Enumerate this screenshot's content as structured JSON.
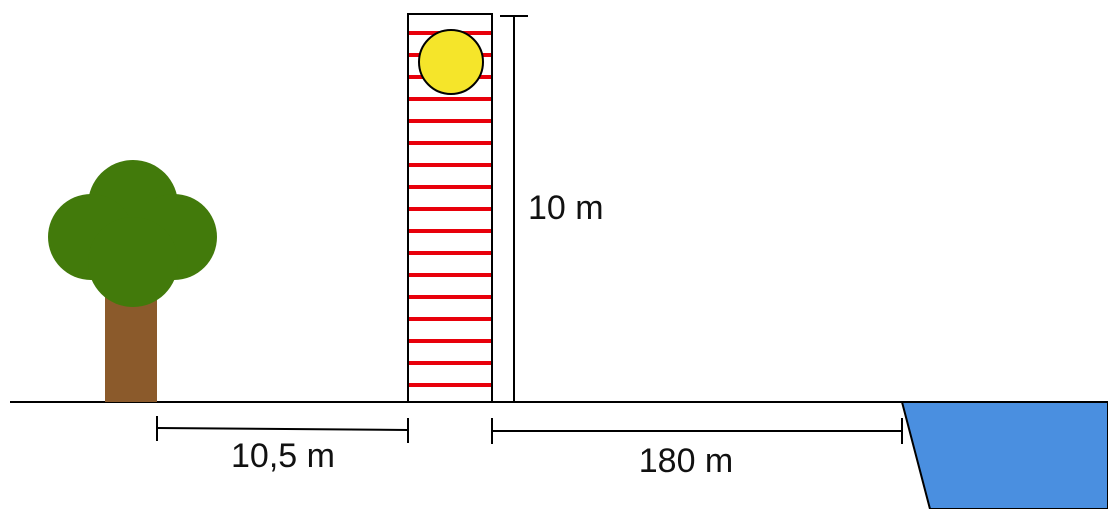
{
  "dimensions": {
    "height": "10 m",
    "tree_distance": "10,5 m",
    "water_distance": "180 m"
  }
}
